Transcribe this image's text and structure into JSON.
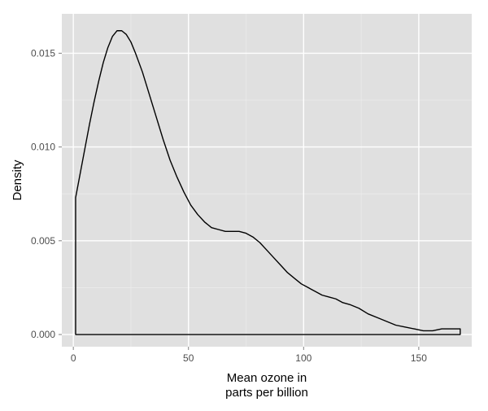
{
  "chart_data": {
    "type": "area",
    "title": "",
    "xlabel": "Mean ozone in\nparts per billion",
    "ylabel": "Density",
    "xlim": [
      -5,
      173
    ],
    "ylim": [
      -0.00065,
      0.0171
    ],
    "x_ticks": [
      0,
      50,
      100,
      150
    ],
    "x_tick_labels": [
      "0",
      "50",
      "100",
      "150"
    ],
    "y_ticks": [
      0.0,
      0.005,
      0.01,
      0.015
    ],
    "y_tick_labels": [
      "0.000",
      "0.005",
      "0.010",
      "0.015"
    ],
    "grid": true,
    "legend": "none",
    "series": [
      {
        "x": [
          1,
          3,
          5,
          7,
          9,
          11,
          13,
          15,
          17,
          19,
          21,
          23,
          25,
          27,
          30,
          33,
          36,
          39,
          42,
          45,
          48,
          51,
          54,
          57,
          60,
          63,
          66,
          69,
          72,
          75,
          78,
          81,
          84,
          87,
          90,
          93,
          96,
          99,
          102,
          105,
          108,
          111,
          114,
          117,
          120,
          124,
          128,
          132,
          136,
          140,
          144,
          148,
          152,
          156,
          160,
          164,
          168
        ],
        "y": [
          0.0073,
          0.0086,
          0.0099,
          0.0112,
          0.0124,
          0.0135,
          0.0145,
          0.0153,
          0.0159,
          0.0162,
          0.0162,
          0.016,
          0.0156,
          0.015,
          0.014,
          0.0128,
          0.0116,
          0.0104,
          0.0093,
          0.0084,
          0.0076,
          0.0069,
          0.0064,
          0.006,
          0.0057,
          0.0056,
          0.0055,
          0.0055,
          0.0055,
          0.0054,
          0.0052,
          0.0049,
          0.0045,
          0.0041,
          0.0037,
          0.0033,
          0.003,
          0.0027,
          0.0025,
          0.0023,
          0.0021,
          0.002,
          0.0019,
          0.0017,
          0.0016,
          0.0014,
          0.0011,
          0.0009,
          0.0007,
          0.0005,
          0.0004,
          0.0003,
          0.0002,
          0.0002,
          0.0003,
          0.0003,
          0.0003
        ]
      }
    ]
  },
  "colors": {
    "panel_background": "#e0e0e0",
    "grid_major": "#ffffff",
    "grid_minor": "#ebebeb",
    "curve": "#000000",
    "tick_label": "#4d4d4d",
    "axis_title": "#000000"
  }
}
